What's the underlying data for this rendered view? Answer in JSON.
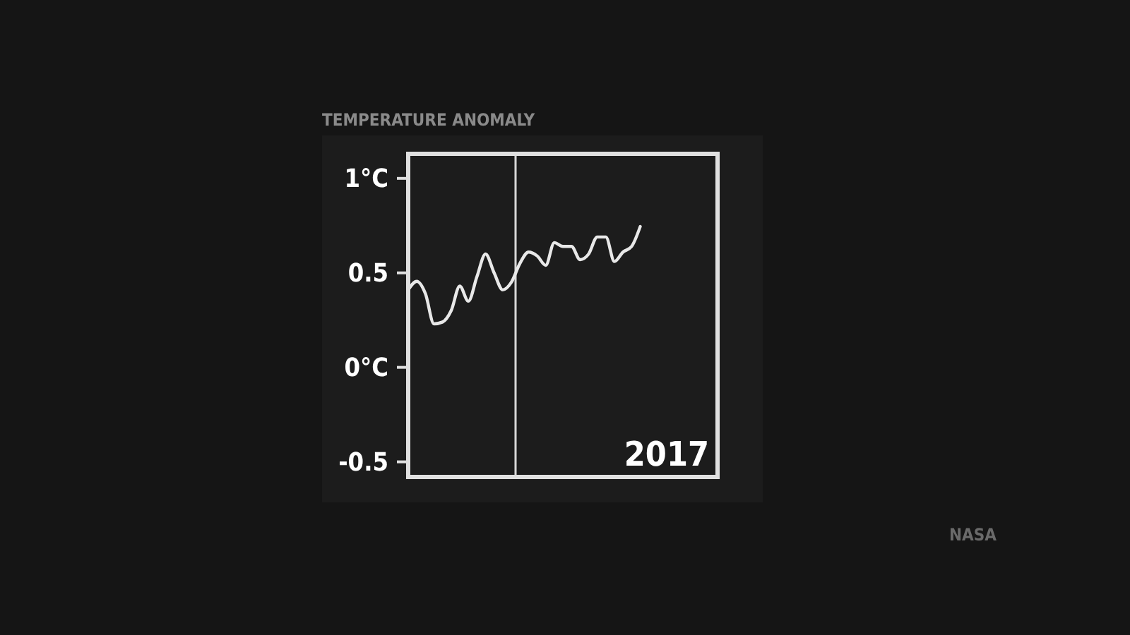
{
  "chart_data": {
    "type": "line",
    "title": "TEMPERATURE ANOMALY",
    "annotations": [
      "2017",
      "NASA"
    ],
    "categories": [
      null,
      null,
      null,
      null,
      null,
      null,
      null,
      null,
      null,
      null,
      null,
      null,
      null,
      null,
      null,
      null,
      null,
      null,
      null,
      null,
      null,
      null,
      null,
      null,
      null,
      null,
      null,
      null,
      null,
      null,
      null,
      null,
      null,
      null,
      null,
      null,
      null
    ],
    "series": [
      {
        "color": "#e8e8e8",
        "values": [
          0.41,
          0.455,
          0.39,
          0.23,
          0.24,
          0.3,
          0.43,
          0.35,
          0.48,
          0.6,
          0.5,
          0.41,
          0.45,
          0.55,
          0.61,
          0.59,
          0.54,
          0.66,
          0.64,
          0.64,
          0.57,
          0.6,
          0.69,
          0.69,
          0.56,
          0.61,
          0.64,
          0.745,
          null,
          null,
          null,
          null,
          null,
          null,
          null,
          null,
          null
        ]
      }
    ],
    "ylim": [
      -0.58,
      1.13
    ],
    "yticks": [
      {
        "value": 1,
        "label": "1°C"
      },
      0.5,
      {
        "value": 0,
        "label": "0°C"
      },
      -0.5
    ],
    "grid": false,
    "tick_labels": "y",
    "marker": "none",
    "line_style": "solid"
  }
}
